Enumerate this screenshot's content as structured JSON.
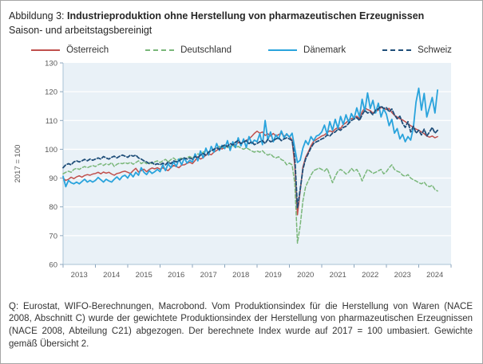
{
  "figure": {
    "label": "Abbildung 3:",
    "title": "Industrieproduktion ohne Herstellung von pharmazeutischen Erzeugnissen",
    "subtitle": "Saison- und arbeitstagsbereinigt"
  },
  "footer": {
    "text": "Q: Eurostat, WIFO-Berechnungen, Macrobond. Vom Produktionsindex für die Herstellung von Waren (NACE 2008, Abschnitt C) wurde der gewichtete Produktionsindex der Herstellung von pharmazeutischen Erzeugnissen (NACE 2008, Abteilung C21) abgezogen. Der berechnete Index wurde auf 2017 = 100 umbasiert. Gewichte gemäß Übersicht 2."
  },
  "chart_data": {
    "type": "line",
    "title": "Industrieproduktion ohne Herstellung von pharmazeutischen Erzeugnissen",
    "subtitle": "Saison- und arbeitstagsbereinigt",
    "ylabel": "2017 = 100",
    "xlabel": "",
    "ylim": [
      60,
      130
    ],
    "yticks": [
      60,
      70,
      80,
      90,
      100,
      110,
      120,
      130
    ],
    "years": [
      2013,
      2014,
      2015,
      2016,
      2017,
      2018,
      2019,
      2020,
      2021,
      2022,
      2023,
      2024
    ],
    "frequency": "monthly",
    "x_start": "2013-01",
    "x_end": "2024-08",
    "grid": "horizontal-white-on-light-blue-panel",
    "legend_position": "top",
    "colors": {
      "panel": "#e9f1f7",
      "gridline": "#ffffff",
      "axis": "#a9c3d6",
      "tick": "#8ca6bd",
      "tick_label": "#595959"
    },
    "series": [
      {
        "name": "Österreich",
        "color": "#c0504d",
        "style": "solid",
        "values": [
          90.0,
          89.2,
          89.6,
          90.3,
          89.8,
          90.4,
          90.8,
          90.3,
          90.9,
          91.2,
          91.0,
          91.4,
          91.6,
          92.0,
          91.5,
          92.1,
          91.7,
          92.0,
          91.4,
          91.0,
          91.6,
          91.8,
          92.2,
          92.4,
          92.0,
          91.6,
          92.6,
          93.4,
          92.1,
          92.6,
          93.1,
          92.2,
          93.0,
          93.5,
          93.2,
          93.6,
          93.1,
          93.6,
          93.0,
          92.6,
          93.6,
          94.4,
          94.0,
          93.6,
          94.5,
          94.6,
          95.1,
          95.5,
          95.0,
          96.1,
          97.4,
          96.6,
          97.1,
          98.0,
          98.4,
          98.1,
          99.0,
          99.6,
          100.4,
          100.1,
          100.6,
          101.1,
          100.6,
          102.0,
          101.5,
          102.4,
          102.0,
          102.6,
          103.1,
          103.6,
          104.5,
          105.5,
          106.3,
          105.6,
          106.0,
          104.8,
          105.4,
          104.6,
          105.5,
          104.6,
          105.1,
          105.6,
          104.6,
          105.0,
          104.4,
          103.2,
          94.0,
          77.2,
          85.5,
          93.8,
          97.2,
          99.0,
          101.2,
          102.8,
          103.4,
          104.0,
          104.6,
          105.0,
          105.8,
          106.4,
          106.0,
          107.0,
          107.6,
          107.2,
          108.6,
          109.2,
          110.2,
          110.6,
          111.0,
          111.5,
          110.6,
          113.0,
          114.4,
          113.8,
          113.4,
          112.6,
          113.2,
          113.6,
          114.6,
          114.2,
          113.8,
          114.2,
          112.8,
          111.8,
          111.2,
          110.6,
          110.2,
          109.6,
          108.8,
          108.2,
          107.6,
          107.0,
          106.6,
          106.0,
          105.4,
          104.6,
          104.2,
          104.6,
          104.0,
          104.4
        ]
      },
      {
        "name": "Deutschland",
        "color": "#7ab77a",
        "style": "dashed",
        "values": [
          91.5,
          92.0,
          92.4,
          92.0,
          93.0,
          93.4,
          93.0,
          93.6,
          94.0,
          93.6,
          94.0,
          94.4,
          94.0,
          94.6,
          95.0,
          94.4,
          95.0,
          94.6,
          95.4,
          94.0,
          94.8,
          95.2,
          95.0,
          95.4,
          95.0,
          95.5,
          94.8,
          95.4,
          96.0,
          95.0,
          95.6,
          95.0,
          95.5,
          95.0,
          95.6,
          96.0,
          95.4,
          96.0,
          96.5,
          95.6,
          96.4,
          97.0,
          96.2,
          96.6,
          97.0,
          96.6,
          97.1,
          97.5,
          97.0,
          97.6,
          98.4,
          98.0,
          99.0,
          99.4,
          99.0,
          99.6,
          100.0,
          100.4,
          101.0,
          100.6,
          101.0,
          100.6,
          101.1,
          101.4,
          100.6,
          101.0,
          100.4,
          100.0,
          100.5,
          100.0,
          99.4,
          99.0,
          99.4,
          99.0,
          99.5,
          98.5,
          98.0,
          98.4,
          97.4,
          97.0,
          97.4,
          96.4,
          96.0,
          94.6,
          95.2,
          94.6,
          88.0,
          67.4,
          73.5,
          82.0,
          87.0,
          89.0,
          91.0,
          92.6,
          93.0,
          93.5,
          93.0,
          92.4,
          93.4,
          91.0,
          88.4,
          90.6,
          92.4,
          93.0,
          92.4,
          91.4,
          92.0,
          93.4,
          92.4,
          93.0,
          91.4,
          89.0,
          91.2,
          93.0,
          92.4,
          91.6,
          92.0,
          92.5,
          93.0,
          91.5,
          92.2,
          93.6,
          94.6,
          93.0,
          92.4,
          92.0,
          91.0,
          90.6,
          91.2,
          90.0,
          89.4,
          89.0,
          88.4,
          88.0,
          88.6,
          87.4,
          87.0,
          87.5,
          86.0,
          85.5
        ]
      },
      {
        "name": "Dänemark",
        "color": "#29a3dc",
        "style": "solid",
        "values": [
          90.6,
          87.0,
          89.2,
          88.4,
          88.0,
          88.6,
          88.0,
          88.8,
          89.6,
          88.6,
          89.2,
          88.6,
          89.2,
          90.2,
          89.4,
          88.6,
          89.6,
          89.0,
          88.6,
          89.6,
          90.4,
          89.4,
          90.6,
          91.0,
          90.0,
          91.6,
          90.4,
          92.0,
          91.0,
          93.6,
          92.0,
          91.2,
          92.6,
          91.6,
          92.2,
          93.0,
          92.2,
          94.6,
          92.6,
          95.0,
          93.6,
          95.6,
          94.0,
          96.6,
          94.6,
          97.0,
          95.2,
          96.2,
          95.6,
          98.4,
          96.0,
          99.4,
          97.0,
          100.4,
          98.0,
          101.0,
          99.0,
          102.0,
          99.6,
          101.4,
          100.2,
          103.0,
          99.6,
          102.6,
          100.6,
          104.0,
          101.2,
          103.6,
          100.6,
          104.4,
          102.0,
          103.2,
          102.6,
          105.4,
          101.6,
          110.0,
          103.2,
          106.0,
          102.6,
          105.0,
          103.6,
          106.4,
          104.0,
          105.4,
          104.2,
          105.6,
          100.2,
          95.4,
          96.2,
          100.4,
          103.0,
          101.6,
          104.4,
          103.0,
          104.6,
          105.0,
          106.0,
          108.4,
          105.2,
          109.6,
          106.6,
          110.4,
          107.2,
          111.4,
          108.6,
          112.0,
          109.2,
          112.4,
          110.6,
          114.4,
          111.2,
          117.4,
          113.2,
          119.6,
          114.2,
          117.0,
          112.6,
          116.0,
          111.2,
          114.0,
          112.2,
          108.2,
          110.4,
          105.6,
          107.2,
          103.6,
          105.2,
          102.6,
          104.4,
          103.2,
          107.6,
          116.4,
          121.2,
          113.6,
          119.4,
          111.2,
          114.6,
          118.0,
          112.6,
          120.6
        ]
      },
      {
        "name": "Schweiz",
        "color": "#1f4e79",
        "style": "dashed",
        "values": [
          93.6,
          94.6,
          95.0,
          94.6,
          95.6,
          96.0,
          95.6,
          96.0,
          96.5,
          96.0,
          96.6,
          96.2,
          96.6,
          97.0,
          96.6,
          97.5,
          97.0,
          96.6,
          97.2,
          97.6,
          97.0,
          97.6,
          98.0,
          97.6,
          97.2,
          98.0,
          97.6,
          98.0,
          97.0,
          96.6,
          96.0,
          95.6,
          95.0,
          95.5,
          94.6,
          95.0,
          94.6,
          95.2,
          94.6,
          95.6,
          95.0,
          96.0,
          95.6,
          96.0,
          96.6,
          97.0,
          96.6,
          97.0,
          96.6,
          97.5,
          97.0,
          98.0,
          98.5,
          98.0,
          99.0,
          99.5,
          100.0,
          100.5,
          100.0,
          101.0,
          101.5,
          101.0,
          102.0,
          101.5,
          102.5,
          103.0,
          102.0,
          102.5,
          103.0,
          102.0,
          102.6,
          101.6,
          102.0,
          102.6,
          103.0,
          102.0,
          103.5,
          102.6,
          103.0,
          103.6,
          104.0,
          103.0,
          103.6,
          104.0,
          103.6,
          103.0,
          97.0,
          79.6,
          86.0,
          93.0,
          96.6,
          98.5,
          100.5,
          102.0,
          102.6,
          103.0,
          103.6,
          104.0,
          105.0,
          104.6,
          105.6,
          106.0,
          107.0,
          106.6,
          107.6,
          108.0,
          109.0,
          110.0,
          110.5,
          111.0,
          110.0,
          112.0,
          113.5,
          112.6,
          113.0,
          112.0,
          113.6,
          114.0,
          115.0,
          114.2,
          114.5,
          113.0,
          114.0,
          112.0,
          110.6,
          111.5,
          109.0,
          107.6,
          109.6,
          106.0,
          108.0,
          105.6,
          106.6,
          105.0,
          107.0,
          104.6,
          106.0,
          107.6,
          105.6,
          106.6
        ]
      }
    ]
  }
}
